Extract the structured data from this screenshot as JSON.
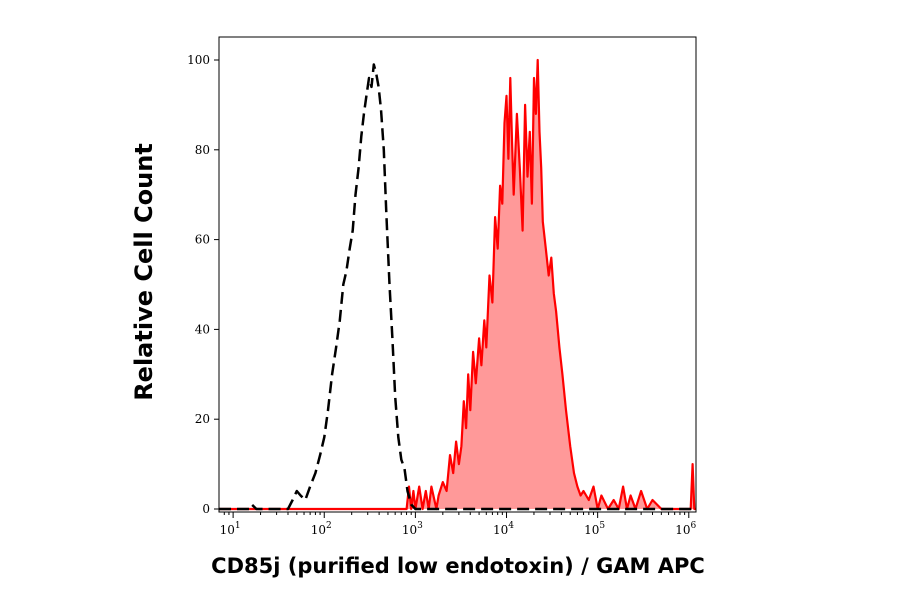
{
  "chart_data": {
    "type": "area",
    "xlabel": "CD85j (purified low endotoxin) / GAM APC",
    "ylabel": "Relative Cell Count",
    "x_scale": "log",
    "xlim": [
      7,
      1200000
    ],
    "ylim": [
      0,
      100
    ],
    "x_ticks": [
      {
        "value": 10,
        "base": "10",
        "exp": "1"
      },
      {
        "value": 100,
        "base": "10",
        "exp": "2"
      },
      {
        "value": 1000,
        "base": "10",
        "exp": "3"
      },
      {
        "value": 10000,
        "base": "10",
        "exp": "4"
      },
      {
        "value": 100000,
        "base": "10",
        "exp": "5"
      },
      {
        "value": 1000000,
        "base": "10",
        "exp": "6"
      }
    ],
    "y_ticks": [
      {
        "value": 0,
        "label": "0"
      },
      {
        "value": 20,
        "label": "20"
      },
      {
        "value": 40,
        "label": "40"
      },
      {
        "value": 60,
        "label": "60"
      },
      {
        "value": 80,
        "label": "80"
      },
      {
        "value": 100,
        "label": "100"
      }
    ],
    "grid": false,
    "legend": "none",
    "series": [
      {
        "style": "dashed",
        "color": "#000000",
        "fill": "none",
        "x": [
          7,
          15,
          16,
          18,
          40,
          45,
          50,
          55,
          62,
          70,
          80,
          90,
          100,
          110,
          122,
          135,
          148,
          162,
          175,
          190,
          205,
          220,
          238,
          255,
          272,
          290,
          310,
          330,
          350,
          372,
          395,
          420,
          450,
          480,
          520,
          560,
          600,
          650,
          700,
          760,
          820,
          900,
          1000,
          1200000
        ],
        "y": [
          0,
          0,
          1,
          0,
          0,
          2,
          4,
          3,
          2,
          5,
          8,
          12,
          16,
          22,
          30,
          36,
          42,
          50,
          53,
          58,
          62,
          70,
          76,
          83,
          88,
          92,
          96,
          94,
          99,
          97,
          94,
          89,
          80,
          66,
          50,
          38,
          25,
          16,
          11,
          9,
          4,
          1,
          0,
          0
        ]
      },
      {
        "style": "solid",
        "color": "#ff0000",
        "fill": "#ff9999",
        "x": [
          7,
          800,
          850,
          900,
          950,
          1000,
          1100,
          1200,
          1300,
          1400,
          1500,
          1700,
          1800,
          2000,
          2200,
          2400,
          2600,
          2800,
          3000,
          3200,
          3400,
          3600,
          3800,
          4000,
          4300,
          4600,
          5000,
          5300,
          5700,
          6000,
          6500,
          7000,
          7500,
          8000,
          8500,
          9000,
          9500,
          10000,
          10500,
          11000,
          11500,
          12000,
          13000,
          14000,
          15000,
          16000,
          17000,
          18000,
          19000,
          20000,
          21000,
          22000,
          23000,
          24000,
          25000,
          27000,
          29000,
          31000,
          33000,
          35000,
          38000,
          41000,
          45000,
          50000,
          55000,
          60000,
          65000,
          70000,
          80000,
          90000,
          100000,
          110000,
          130000,
          150000,
          170000,
          190000,
          210000,
          230000,
          260000,
          300000,
          350000,
          400000,
          500000,
          600000,
          700000,
          800000,
          900000,
          1000000,
          1050000,
          1100000,
          1150000,
          1200000
        ],
        "y": [
          0,
          0,
          5,
          0,
          4,
          0,
          5,
          0,
          4,
          0,
          5,
          0,
          3,
          6,
          4,
          12,
          8,
          15,
          10,
          14,
          24,
          18,
          30,
          22,
          35,
          28,
          38,
          32,
          42,
          36,
          52,
          46,
          65,
          58,
          72,
          68,
          86,
          92,
          78,
          96,
          82,
          70,
          88,
          76,
          62,
          90,
          74,
          84,
          68,
          96,
          88,
          100,
          84,
          76,
          64,
          58,
          52,
          56,
          48,
          44,
          36,
          30,
          22,
          14,
          8,
          5,
          3,
          4,
          2,
          5,
          0,
          3,
          0,
          2,
          0,
          5,
          0,
          3,
          0,
          4,
          0,
          2,
          0,
          0,
          0,
          0,
          0,
          0,
          0,
          10,
          0,
          0
        ]
      }
    ]
  }
}
